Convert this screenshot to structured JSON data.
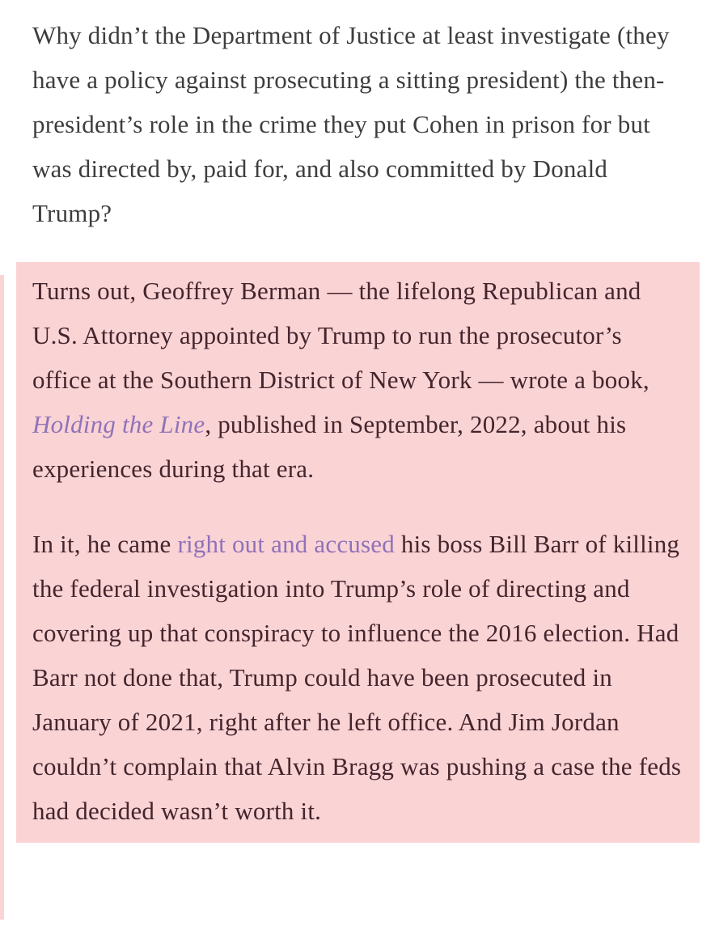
{
  "article": {
    "intro_paragraph": "Why didn’t the Department of Justice at least investigate (they have a policy against prosecuting a sitting president) the then-president’s role in the crime they put Cohen in prison for but was directed by, paid for, and also committed by Donald Trump?",
    "quote": {
      "p1_before": "Turns out, Geoffrey Berman — the lifelong Republican and U.S. Attorney appointed by Trump to run the prosecutor’s office at the Southern District of New York — wrote a book, ",
      "p1_link": "Holding the Line",
      "p1_after": ", published in September, 2022, about his experiences during that era.",
      "p2_before": "In it, he came ",
      "p2_link": "right out and accused",
      "p2_after": " his boss Bill Barr of killing the federal investigation into Trump’s role of directing and covering up that conspiracy to influence the 2016 election. Had Barr not done that, Trump could have been prosecuted in January of 2021, right after he left office. And Jim Jordan couldn’t complain that Alvin Bragg was pushing a case the feds had decided wasn’t worth it."
    }
  },
  "colors": {
    "page_background": "#ffffff",
    "body_text": "#3d3d3d",
    "highlight_background": "#fad3d5",
    "highlight_text": "#44252c",
    "link_purple": "#8f72b8"
  }
}
